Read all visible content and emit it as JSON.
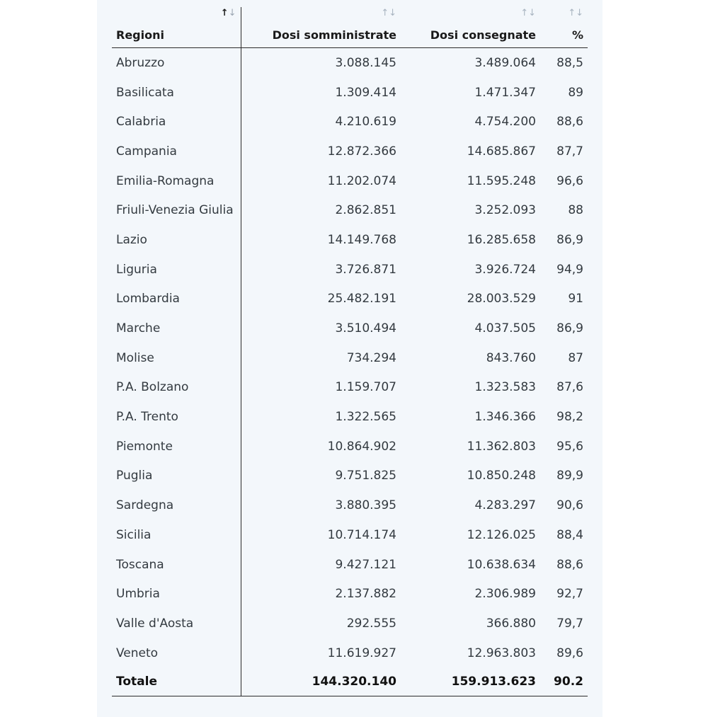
{
  "table": {
    "columns": [
      {
        "label": "Regioni",
        "sort_icon": "sort-arrows-icon",
        "sort_state": "active"
      },
      {
        "label": "Dosi somministrate",
        "sort_icon": "sort-arrows-icon",
        "sort_state": "inactive"
      },
      {
        "label": "Dosi consegnate",
        "sort_icon": "sort-arrows-icon",
        "sort_state": "inactive"
      },
      {
        "label": "%",
        "sort_icon": "sort-arrows-icon",
        "sort_state": "inactive"
      }
    ],
    "sort_glyph_up": "↑",
    "sort_glyph_down": "↓",
    "rows": [
      {
        "regione": "Abruzzo",
        "somministrate": "3.088.145",
        "consegnate": "3.489.064",
        "percentuale": "88,5"
      },
      {
        "regione": "Basilicata",
        "somministrate": "1.309.414",
        "consegnate": "1.471.347",
        "percentuale": "89"
      },
      {
        "regione": "Calabria",
        "somministrate": "4.210.619",
        "consegnate": "4.754.200",
        "percentuale": "88,6"
      },
      {
        "regione": "Campania",
        "somministrate": "12.872.366",
        "consegnate": "14.685.867",
        "percentuale": "87,7"
      },
      {
        "regione": "Emilia-Romagna",
        "somministrate": "11.202.074",
        "consegnate": "11.595.248",
        "percentuale": "96,6"
      },
      {
        "regione": "Friuli-Venezia Giulia",
        "somministrate": "2.862.851",
        "consegnate": "3.252.093",
        "percentuale": "88"
      },
      {
        "regione": "Lazio",
        "somministrate": "14.149.768",
        "consegnate": "16.285.658",
        "percentuale": "86,9"
      },
      {
        "regione": "Liguria",
        "somministrate": "3.726.871",
        "consegnate": "3.926.724",
        "percentuale": "94,9"
      },
      {
        "regione": "Lombardia",
        "somministrate": "25.482.191",
        "consegnate": "28.003.529",
        "percentuale": "91"
      },
      {
        "regione": "Marche",
        "somministrate": "3.510.494",
        "consegnate": "4.037.505",
        "percentuale": "86,9"
      },
      {
        "regione": "Molise",
        "somministrate": "734.294",
        "consegnate": "843.760",
        "percentuale": "87"
      },
      {
        "regione": "P.A. Bolzano",
        "somministrate": "1.159.707",
        "consegnate": "1.323.583",
        "percentuale": "87,6"
      },
      {
        "regione": "P.A. Trento",
        "somministrate": "1.322.565",
        "consegnate": "1.346.366",
        "percentuale": "98,2"
      },
      {
        "regione": "Piemonte",
        "somministrate": "10.864.902",
        "consegnate": "11.362.803",
        "percentuale": "95,6"
      },
      {
        "regione": "Puglia",
        "somministrate": "9.751.825",
        "consegnate": "10.850.248",
        "percentuale": "89,9"
      },
      {
        "regione": "Sardegna",
        "somministrate": "3.880.395",
        "consegnate": "4.283.297",
        "percentuale": "90,6"
      },
      {
        "regione": "Sicilia",
        "somministrate": "10.714.174",
        "consegnate": "12.126.025",
        "percentuale": "88,4"
      },
      {
        "regione": "Toscana",
        "somministrate": "9.427.121",
        "consegnate": "10.638.634",
        "percentuale": "88,6"
      },
      {
        "regione": "Umbria",
        "somministrate": "2.137.882",
        "consegnate": "2.306.989",
        "percentuale": "92,7"
      },
      {
        "regione": "Valle d'Aosta",
        "somministrate": "292.555",
        "consegnate": "366.880",
        "percentuale": "79,7"
      },
      {
        "regione": "Veneto",
        "somministrate": "11.619.927",
        "consegnate": "12.963.803",
        "percentuale": "89,6"
      }
    ],
    "total": {
      "regione": "Totale",
      "somministrate": "144.320.140",
      "consegnate": "159.913.623",
      "percentuale": "90.2"
    }
  },
  "colors": {
    "panel_background": "#f3f7fb",
    "text": "#333a40",
    "header_text": "#1a1a1a",
    "rule": "#2b2b2b",
    "sort_inactive": "#a8b4c0"
  }
}
